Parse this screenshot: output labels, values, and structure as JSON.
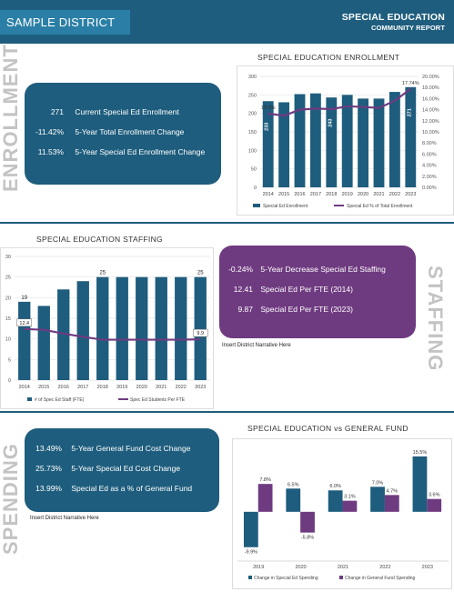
{
  "header": {
    "district": "SAMPLE DISTRICT",
    "title_line1": "SPECIAL EDUCATION",
    "title_line2": "COMMUNITY REPORT"
  },
  "sections": {
    "enrollment": "ENROLLMENT",
    "staffing": "STAFFING",
    "spending": "SPENDING"
  },
  "enrollment_panel": [
    {
      "value": "271",
      "label": "Current Special Ed Enrollment"
    },
    {
      "value": "-11.42%",
      "label": "5-Year Total Enrollment Change"
    },
    {
      "value": "11.53%",
      "label": "5-Year Special Ed Enrollment Change"
    }
  ],
  "staffing_panel": [
    {
      "value": "-0.24%",
      "label": "5-Year Decrease Special Ed Staffing"
    },
    {
      "value": "12.41",
      "label": "Special Ed Per FTE (2014)"
    },
    {
      "value": "9.87",
      "label": "Special Ed Per FTE (2023)"
    }
  ],
  "spending_panel": [
    {
      "value": "13.49%",
      "label": "5-Year General Fund Cost Change"
    },
    {
      "value": "25.73%",
      "label": "5-Year Special Ed Cost Change"
    },
    {
      "value": "13.99%",
      "label": "Special Ed as a % of General Fund"
    }
  ],
  "staffing_narrative": "Insert District Narrative Here",
  "spending_narrative": "Insert District Narrative Here",
  "colors": {
    "navy": "#1e5d7d",
    "purple": "#6f3b80",
    "header_box": "#2b7fa6"
  },
  "chart_data": [
    {
      "type": "bar",
      "title": "SPECIAL EDUCATION ENROLLMENT",
      "categories": [
        "2014",
        "2015",
        "2016",
        "2017",
        "2018",
        "2019",
        "2020",
        "2021",
        "2022",
        "2023"
      ],
      "series": [
        {
          "name": "Special Ed Enrollment",
          "type": "bar",
          "axis": "left",
          "values": [
            233,
            230,
            252,
            254,
            243,
            250,
            240,
            240,
            258,
            271
          ]
        },
        {
          "name": "Special Ed % of Total Enrollment",
          "type": "line",
          "axis": "right",
          "values": [
            13.3,
            12.9,
            14.0,
            14.2,
            14.1,
            14.6,
            14.5,
            14.3,
            15.6,
            17.74
          ]
        }
      ],
      "data_labels": [
        {
          "index": 0,
          "series": 0,
          "text": "233"
        },
        {
          "index": 4,
          "series": 0,
          "text": "243"
        },
        {
          "index": 9,
          "series": 0,
          "text": "271"
        },
        {
          "index": 0,
          "series": 1,
          "text": "13.3%"
        },
        {
          "index": 9,
          "series": 1,
          "text": "17.74%"
        }
      ],
      "yticks_left": [
        "0",
        "50",
        "100",
        "150",
        "200",
        "250",
        "300"
      ],
      "yticks_right": [
        "0.00%",
        "2.00%",
        "4.00%",
        "6.00%",
        "8.00%",
        "10.00%",
        "12.00%",
        "14.00%",
        "16.00%",
        "18.00%",
        "20.00%"
      ],
      "ylim_left": [
        0,
        300
      ],
      "ylim_right": [
        0,
        20
      ],
      "grid": true,
      "legend": "bottom"
    },
    {
      "type": "bar",
      "title": "SPECIAL EDUCATION STAFFING",
      "categories": [
        "2014",
        "2015",
        "2016",
        "2017",
        "2018",
        "2019",
        "2020",
        "2021",
        "2022",
        "2023"
      ],
      "series": [
        {
          "name": "# of Spec Ed Staff (FTE)",
          "type": "bar",
          "values": [
            19,
            18,
            22,
            24,
            25,
            25,
            25,
            25,
            25,
            25
          ]
        },
        {
          "name": "Spec Ed Students Per FTE",
          "type": "line",
          "values": [
            12.4,
            12.2,
            11.3,
            10.5,
            9.8,
            9.8,
            9.8,
            9.8,
            9.8,
            9.9
          ]
        }
      ],
      "data_labels": [
        {
          "index": 0,
          "series": 0,
          "text": "19"
        },
        {
          "index": 4,
          "series": 0,
          "text": "25"
        },
        {
          "index": 9,
          "series": 0,
          "text": "25"
        },
        {
          "index": 0,
          "series": 1,
          "text": "12.4"
        },
        {
          "index": 9,
          "series": 1,
          "text": "9.9"
        }
      ],
      "yticks": [
        "0",
        "5",
        "10",
        "15",
        "20",
        "25",
        "30"
      ],
      "ylim": [
        0,
        30
      ],
      "grid": true,
      "legend": "bottom"
    },
    {
      "type": "bar",
      "title": "SPECIAL EDUCATION vs GENERAL FUND",
      "categories": [
        "2019",
        "2020",
        "2021",
        "2022",
        "2023"
      ],
      "series": [
        {
          "name": "Change in Special Ed Spending",
          "values": [
            -9.9,
            6.5,
            6.0,
            7.0,
            15.5
          ],
          "labels": [
            "-9.9%",
            "6.5%",
            "6.0%",
            "7.0%",
            "15.5%"
          ]
        },
        {
          "name": "Change in General Fund Spending",
          "values": [
            7.8,
            -5.8,
            3.1,
            4.7,
            3.6
          ],
          "labels": [
            "7.8%",
            "-5.8%",
            "3.1%",
            "4.7%",
            "3.6%"
          ]
        }
      ],
      "ylim": [
        -12,
        17
      ],
      "grid": false,
      "legend": "bottom"
    }
  ]
}
